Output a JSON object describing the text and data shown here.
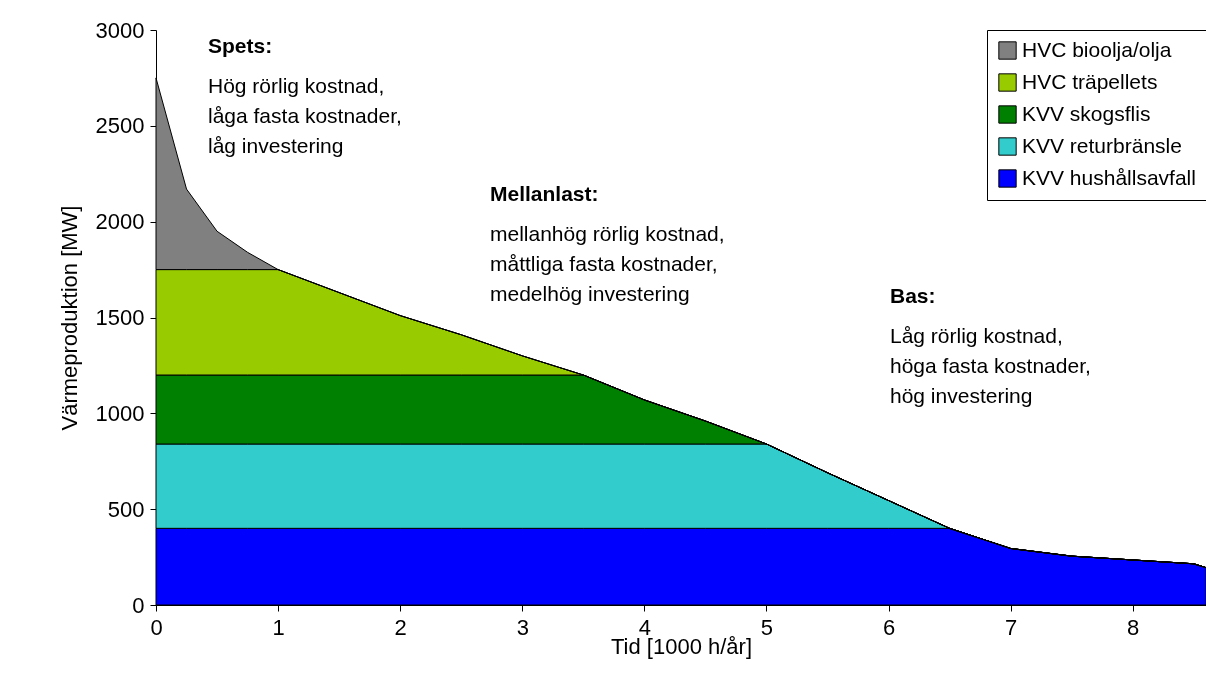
{
  "chart_data": {
    "type": "area",
    "stacked": true,
    "xlabel": "Tid [1000 h/år]",
    "ylabel": "Värmeproduktion [MW]",
    "x": [
      0,
      0.25,
      0.5,
      0.75,
      1,
      1.5,
      2,
      2.5,
      3,
      3.5,
      4,
      4.5,
      5,
      5.5,
      6,
      6.5,
      7,
      7.5,
      8,
      8.5,
      8.6
    ],
    "series": [
      {
        "name": "KVV hushållsavfall",
        "color": "#0000ff",
        "values": [
          400,
          400,
          400,
          400,
          400,
          400,
          400,
          400,
          400,
          400,
          400,
          400,
          400,
          400,
          400,
          400,
          295,
          255,
          235,
          215,
          195
        ]
      },
      {
        "name": "KVV returbränsle",
        "color": "#33cccc",
        "values": [
          440,
          440,
          440,
          440,
          440,
          440,
          440,
          440,
          440,
          440,
          440,
          440,
          440,
          290,
          145,
          0,
          0,
          0,
          0,
          0,
          0
        ]
      },
      {
        "name": "KVV skogsflis",
        "color": "#008000",
        "values": [
          360,
          360,
          360,
          360,
          360,
          360,
          360,
          360,
          360,
          360,
          230,
          120,
          0,
          0,
          0,
          0,
          0,
          0,
          0,
          0,
          0
        ]
      },
      {
        "name": "HVC träpellets",
        "color": "#99cc00",
        "values": [
          550,
          550,
          550,
          550,
          550,
          430,
          310,
          210,
          100,
          0,
          0,
          0,
          0,
          0,
          0,
          0,
          0,
          0,
          0,
          0,
          0
        ]
      },
      {
        "name": "HVC bioolja/olja",
        "color": "#808080",
        "values": [
          1000,
          420,
          200,
          90,
          0,
          0,
          0,
          0,
          0,
          0,
          0,
          0,
          0,
          0,
          0,
          0,
          0,
          0,
          0,
          0,
          0
        ]
      }
    ],
    "xlim": [
      0,
      8.6
    ],
    "xticks": [
      0,
      1,
      2,
      3,
      4,
      5,
      6,
      7,
      8
    ],
    "ylim": [
      0,
      3000
    ],
    "yticks": [
      0,
      500,
      1000,
      1500,
      2000,
      2500,
      3000
    ],
    "grid": false,
    "legend": "top right",
    "annotations": [
      "Spets:",
      "Hög rörlig kostnad,\nlåga fasta kostnader,\nlåg investering",
      "Mellanlast:",
      "mellanhög rörlig kostnad,\nmåttliga fasta kostnader,\nmedelhög investering",
      "Bas:",
      "Låg rörlig kostnad,\nhöga fasta kostnader,\nhög investering"
    ]
  }
}
